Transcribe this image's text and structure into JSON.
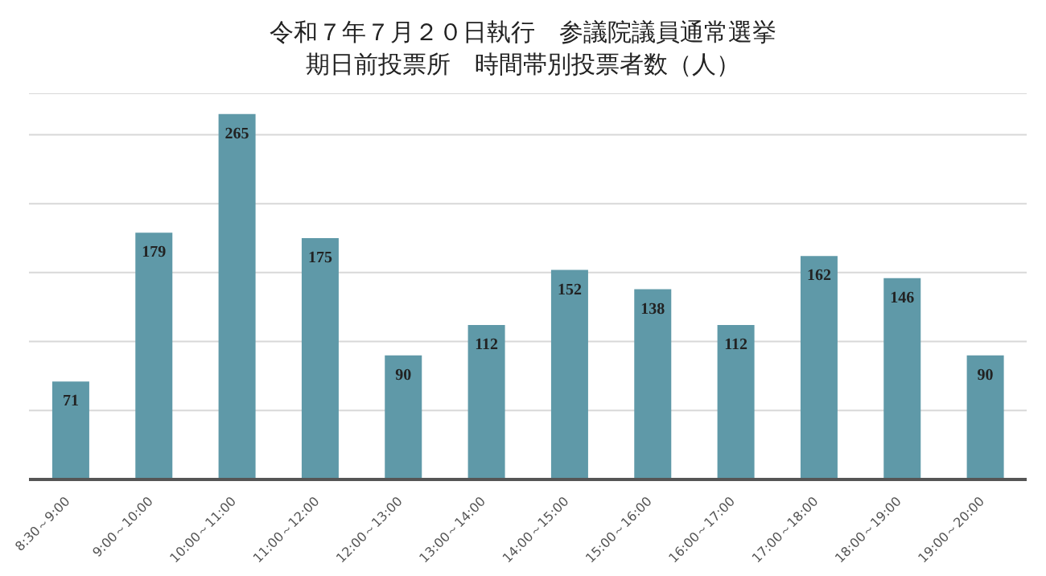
{
  "chart_data": {
    "type": "bar",
    "title": "令和７年７月２０日執行　参議院議員通常選挙",
    "subtitle": "期日前投票所　時間帯別投票者数（人）",
    "categories": [
      "8:30～9:00",
      "9:00～10:00",
      "10:00～11:00",
      "11:00～12:00",
      "12:00～13:00",
      "13:00～14:00",
      "14:00～15:00",
      "15:00～16:00",
      "16:00～17:00",
      "17:00～18:00",
      "18:00～19:00",
      "19:00～20:00"
    ],
    "values": [
      71,
      179,
      265,
      175,
      90,
      112,
      152,
      138,
      112,
      162,
      146,
      90
    ],
    "color": "#5f99a8",
    "data_labels": true,
    "yticks": [
      {
        "value": 0,
        "label": null
      },
      {
        "value": 50,
        "label": null
      },
      {
        "value": 100,
        "label": null
      },
      {
        "value": 150,
        "label": null
      },
      {
        "value": 200,
        "label": null
      },
      {
        "value": 250,
        "label": null
      }
    ],
    "grid": "y",
    "tick_labels": "x"
  }
}
